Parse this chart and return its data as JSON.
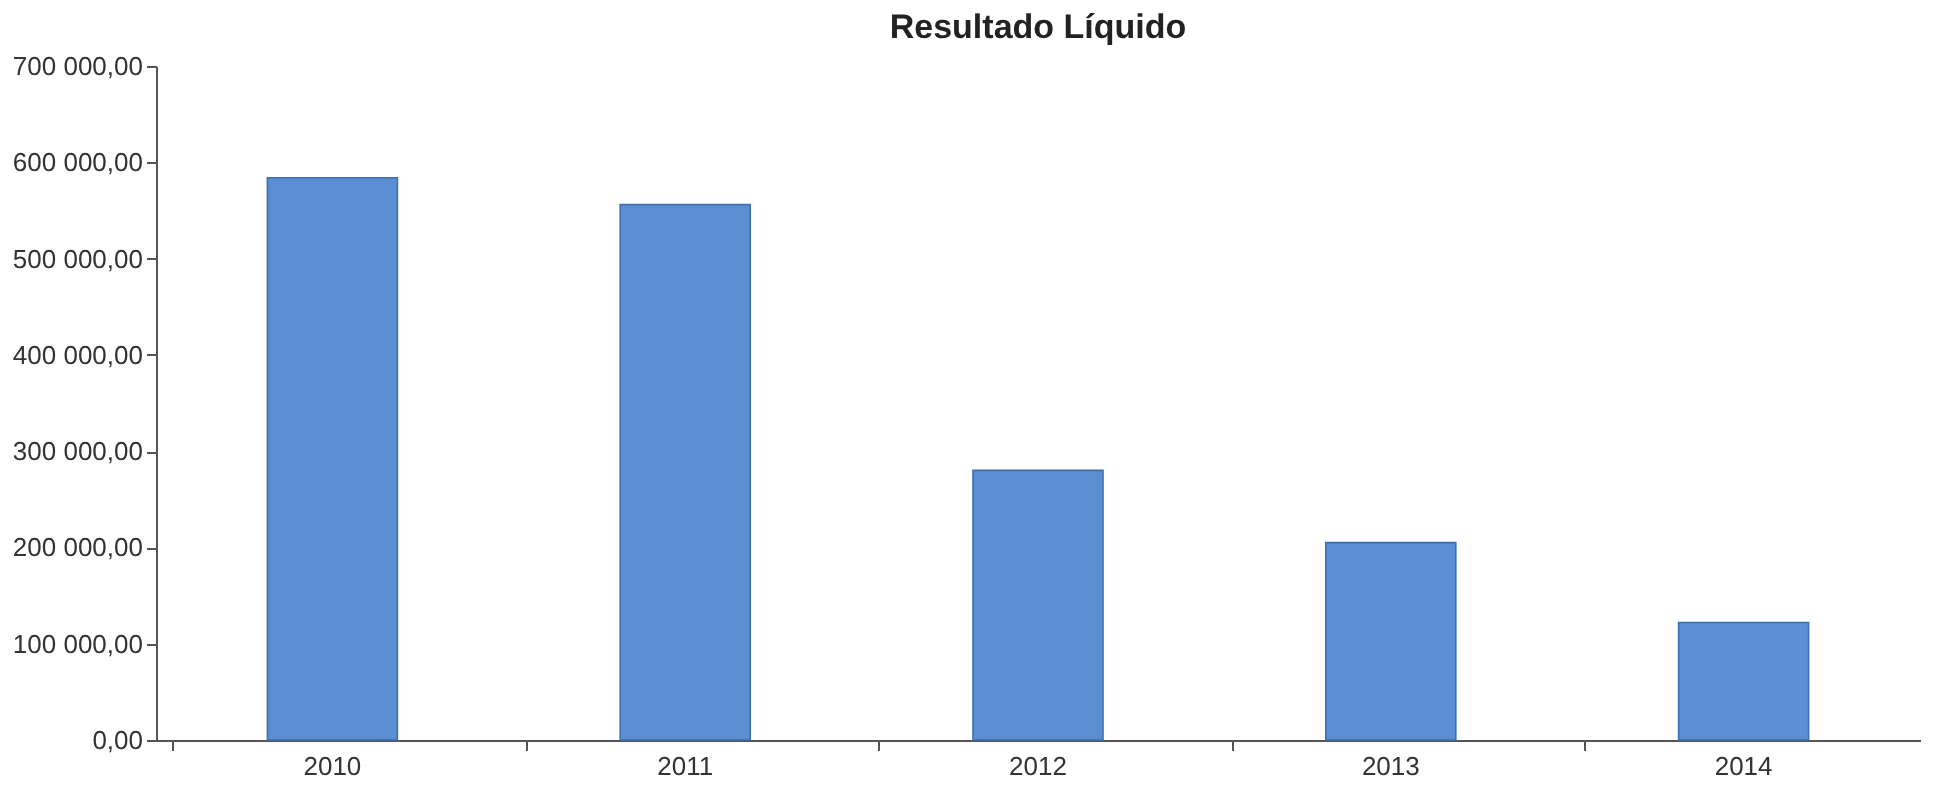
{
  "chart_data": {
    "type": "bar",
    "title": "Resultado Líquido",
    "categories": [
      "2010",
      "2011",
      "2012",
      "2013",
      "2014"
    ],
    "values": [
      584000,
      556000,
      280000,
      205000,
      122000
    ],
    "color": "#5b8fd4",
    "ylim": [
      0,
      700000
    ],
    "yticks": [
      {
        "value": 0,
        "label": "0,00"
      },
      {
        "value": 100000,
        "label": "100 000,00"
      },
      {
        "value": 200000,
        "label": "200 000,00"
      },
      {
        "value": 300000,
        "label": "300 000,00"
      },
      {
        "value": 400000,
        "label": "400 000,00"
      },
      {
        "value": 500000,
        "label": "500 000,00"
      },
      {
        "value": 600000,
        "label": "600 000,00"
      },
      {
        "value": 700000,
        "label": "700 000,00"
      }
    ],
    "grid": false
  }
}
